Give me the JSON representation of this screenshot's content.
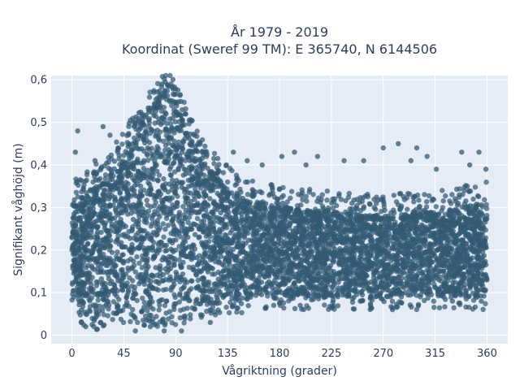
{
  "chart_data": {
    "type": "scatter",
    "title_line1": "År 1979 - 2019",
    "title_line2": "Koordinat (Sweref 99 TM): E 365740, N 6144506",
    "xlabel": "Vågriktning (grader)",
    "ylabel": "Signifikant våghöjd (m)",
    "xlim": [
      -18,
      378
    ],
    "ylim": [
      -0.02,
      0.61
    ],
    "x_ticks": [
      0,
      45,
      90,
      135,
      180,
      225,
      270,
      315,
      360
    ],
    "x_tick_labels": [
      "0",
      "45",
      "90",
      "135",
      "180",
      "225",
      "270",
      "315",
      "360"
    ],
    "y_ticks": [
      0,
      0.1,
      0.2,
      0.3,
      0.4,
      0.5,
      0.6
    ],
    "y_tick_labels": [
      "0",
      "0,1",
      "0,2",
      "0,3",
      "0,4",
      "0,5",
      "0,6"
    ],
    "grid": true,
    "colors": {
      "point": "#325a73",
      "plot_bg": "#e5ecf6",
      "grid": "#ffffff",
      "text": "#2a3f5f"
    },
    "envelope": {
      "direction": [
        0,
        10,
        20,
        30,
        45,
        60,
        75,
        85,
        90,
        100,
        110,
        120,
        135,
        150,
        180,
        225,
        270,
        315,
        360
      ],
      "upper_hs": [
        0.31,
        0.33,
        0.35,
        0.37,
        0.43,
        0.5,
        0.56,
        0.57,
        0.55,
        0.48,
        0.43,
        0.39,
        0.35,
        0.32,
        0.3,
        0.29,
        0.28,
        0.29,
        0.31
      ],
      "lower_hs": [
        0.09,
        0.05,
        0.04,
        0.05,
        0.05,
        0.05,
        0.05,
        0.05,
        0.05,
        0.06,
        0.07,
        0.07,
        0.08,
        0.08,
        0.09,
        0.09,
        0.09,
        0.09,
        0.09
      ]
    },
    "outliers": [
      {
        "x": 5,
        "y": 0.48
      },
      {
        "x": 3,
        "y": 0.43
      },
      {
        "x": 20,
        "y": 0.41
      },
      {
        "x": 27,
        "y": 0.49
      },
      {
        "x": 33,
        "y": 0.47
      },
      {
        "x": 40,
        "y": 0.44
      },
      {
        "x": 55,
        "y": 0.01
      },
      {
        "x": 80,
        "y": 0.01
      },
      {
        "x": 78,
        "y": 0.59
      },
      {
        "x": 12,
        "y": 0.02
      },
      {
        "x": 8,
        "y": 0.03
      },
      {
        "x": 140,
        "y": 0.43
      },
      {
        "x": 152,
        "y": 0.41
      },
      {
        "x": 165,
        "y": 0.4
      },
      {
        "x": 182,
        "y": 0.42
      },
      {
        "x": 193,
        "y": 0.43
      },
      {
        "x": 203,
        "y": 0.4
      },
      {
        "x": 213,
        "y": 0.42
      },
      {
        "x": 236,
        "y": 0.41
      },
      {
        "x": 253,
        "y": 0.41
      },
      {
        "x": 270,
        "y": 0.44
      },
      {
        "x": 283,
        "y": 0.45
      },
      {
        "x": 294,
        "y": 0.41
      },
      {
        "x": 299,
        "y": 0.44
      },
      {
        "x": 308,
        "y": 0.42
      },
      {
        "x": 316,
        "y": 0.39
      },
      {
        "x": 338,
        "y": 0.43
      },
      {
        "x": 353,
        "y": 0.43
      },
      {
        "x": 345,
        "y": 0.4
      },
      {
        "x": 359,
        "y": 0.39
      },
      {
        "x": 175,
        "y": 0.07
      },
      {
        "x": 198,
        "y": 0.07
      },
      {
        "x": 250,
        "y": 0.08
      },
      {
        "x": 278,
        "y": 0.06
      },
      {
        "x": 330,
        "y": 0.08
      },
      {
        "x": 355,
        "y": 0.08
      },
      {
        "x": 120,
        "y": 0.03
      },
      {
        "x": 95,
        "y": 0.01
      },
      {
        "x": 68,
        "y": 0.02
      },
      {
        "x": 25,
        "y": 0.03
      }
    ]
  }
}
